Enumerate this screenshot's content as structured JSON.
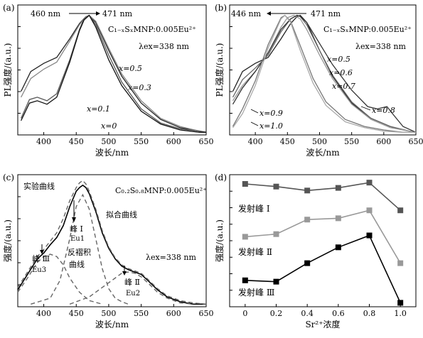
{
  "chart_data": [
    {
      "panel": "(a)",
      "type": "line",
      "xlabel": "波长/nm",
      "ylabel": "PL强度/(a.u.)",
      "xlim": [
        360,
        650
      ],
      "xticks": [
        400,
        450,
        500,
        550,
        600,
        650
      ],
      "title": "C₁₋ₓSₓMNP:0.005Eu²⁺",
      "excitation": "λex=338 nm",
      "shift_annotation": {
        "from": "460 nm",
        "to": "471 nm"
      },
      "series": [
        {
          "name": "x=0.5",
          "shade": "#222222",
          "x": [
            365,
            380,
            400,
            420,
            440,
            455,
            465,
            470,
            480,
            500,
            520,
            550,
            580,
            610,
            640,
            650
          ],
          "y": [
            0.35,
            0.52,
            0.59,
            0.64,
            0.8,
            0.93,
            0.99,
            1.0,
            0.94,
            0.7,
            0.48,
            0.25,
            0.11,
            0.04,
            0.01,
            0.0
          ]
        },
        {
          "name": "x=0.3",
          "shade": "#888888",
          "x": [
            365,
            380,
            400,
            420,
            440,
            455,
            465,
            470,
            480,
            500,
            520,
            550,
            580,
            610,
            640,
            650
          ],
          "y": [
            0.3,
            0.46,
            0.54,
            0.6,
            0.78,
            0.92,
            0.99,
            1.0,
            0.95,
            0.72,
            0.5,
            0.27,
            0.12,
            0.05,
            0.01,
            0.0
          ]
        },
        {
          "name": "x=0.1",
          "shade": "#555555",
          "x": [
            365,
            378,
            390,
            405,
            420,
            440,
            455,
            462,
            470,
            480,
            500,
            520,
            550,
            580,
            610,
            640,
            650
          ],
          "y": [
            0.12,
            0.28,
            0.3,
            0.27,
            0.33,
            0.62,
            0.88,
            0.97,
            1.0,
            0.92,
            0.66,
            0.43,
            0.2,
            0.08,
            0.03,
            0.01,
            0.0
          ]
        },
        {
          "name": "x=0",
          "shade": "#111111",
          "x": [
            365,
            378,
            390,
            405,
            420,
            440,
            455,
            462,
            470,
            480,
            500,
            520,
            550,
            580,
            610,
            640,
            650
          ],
          "y": [
            0.1,
            0.25,
            0.27,
            0.24,
            0.3,
            0.6,
            0.87,
            0.96,
            1.0,
            0.9,
            0.62,
            0.4,
            0.18,
            0.07,
            0.02,
            0.0,
            0.0
          ]
        }
      ]
    },
    {
      "panel": "(b)",
      "type": "line",
      "xlabel": "波长/nm",
      "ylabel": "PL强度/(a.u.)",
      "xlim": [
        360,
        650
      ],
      "xticks": [
        400,
        450,
        500,
        550,
        600,
        650
      ],
      "title": "C₁₋ₓSₓMNP:0.005Eu²⁺",
      "excitation": "λex=338 nm",
      "shift_annotation": {
        "from": "446 nm",
        "to": "471 nm"
      },
      "series": [
        {
          "name": "x=0.5",
          "shade": "#222222",
          "x": [
            365,
            380,
            400,
            420,
            440,
            455,
            465,
            470,
            480,
            500,
            520,
            550,
            580,
            610,
            640,
            650
          ],
          "y": [
            0.35,
            0.52,
            0.59,
            0.64,
            0.8,
            0.93,
            0.99,
            1.0,
            0.94,
            0.7,
            0.48,
            0.25,
            0.12,
            0.05,
            0.01,
            0.0
          ]
        },
        {
          "name": "x=0.6",
          "shade": "#666666",
          "x": [
            365,
            380,
            400,
            420,
            440,
            455,
            465,
            470,
            480,
            500,
            520,
            550,
            580,
            610,
            640,
            650
          ],
          "y": [
            0.3,
            0.45,
            0.55,
            0.66,
            0.86,
            0.97,
            1.0,
            0.99,
            0.92,
            0.7,
            0.49,
            0.26,
            0.12,
            0.05,
            0.01,
            0.0
          ]
        },
        {
          "name": "x=0.7",
          "shade": "#999999",
          "x": [
            365,
            380,
            400,
            420,
            440,
            450,
            460,
            470,
            480,
            500,
            520,
            550,
            580,
            610,
            640,
            650
          ],
          "y": [
            0.27,
            0.4,
            0.52,
            0.68,
            0.9,
            0.98,
            1.0,
            0.97,
            0.88,
            0.66,
            0.46,
            0.24,
            0.11,
            0.04,
            0.01,
            0.0
          ]
        },
        {
          "name": "x=0.8",
          "shade": "#333333",
          "x": [
            365,
            380,
            400,
            420,
            440,
            455,
            465,
            470,
            480,
            500,
            520,
            550,
            575,
            590,
            605,
            615,
            630,
            650
          ],
          "y": [
            0.24,
            0.38,
            0.52,
            0.68,
            0.88,
            0.97,
            1.0,
            0.99,
            0.94,
            0.76,
            0.58,
            0.36,
            0.22,
            0.2,
            0.22,
            0.15,
            0.05,
            0.0
          ]
        },
        {
          "name": "x=0.9",
          "shade": "#777777",
          "x": [
            365,
            380,
            400,
            420,
            440,
            446,
            455,
            470,
            490,
            510,
            540,
            570,
            600,
            630,
            650
          ],
          "y": [
            0.05,
            0.2,
            0.44,
            0.75,
            0.98,
            1.0,
            0.95,
            0.74,
            0.46,
            0.26,
            0.11,
            0.05,
            0.02,
            0.0,
            0.0
          ]
        },
        {
          "name": "x=1.0",
          "shade": "#aaaaaa",
          "x": [
            365,
            380,
            400,
            420,
            440,
            446,
            455,
            470,
            490,
            510,
            540,
            570,
            600,
            630,
            650
          ],
          "y": [
            0.04,
            0.16,
            0.4,
            0.72,
            0.97,
            1.0,
            0.94,
            0.7,
            0.42,
            0.23,
            0.09,
            0.04,
            0.01,
            0.0,
            0.0
          ]
        }
      ]
    },
    {
      "panel": "(c)",
      "type": "line",
      "xlabel": "波长/nm",
      "ylabel": "强度/(a.u.)",
      "xlim": [
        360,
        650
      ],
      "xticks": [
        400,
        450,
        500,
        550,
        600,
        650
      ],
      "title": "C₀.₂S₀.₈MNP:0.005Eu²⁺",
      "excitation": "λex=338 nm",
      "labels": {
        "experimental": "实验曲线",
        "fitted": "拟合曲线",
        "deconvolution": "反褶积",
        "curve": "曲线",
        "peak1": "峰 Ⅰ",
        "peak1_sub": "Eu1",
        "peak2": "峰 Ⅱ",
        "peak2_sub": "Eu2",
        "peak3": "峰 Ⅲ",
        "peak3_sub": "Eu3"
      },
      "series": [
        {
          "name": "实验曲线",
          "style": "solid",
          "x": [
            360,
            375,
            390,
            400,
            410,
            420,
            430,
            440,
            450,
            455,
            460,
            465,
            470,
            480,
            490,
            500,
            510,
            520,
            530,
            540,
            550,
            560,
            575,
            590,
            610,
            630,
            650
          ],
          "y": [
            0.12,
            0.25,
            0.38,
            0.43,
            0.5,
            0.56,
            0.66,
            0.82,
            0.95,
            0.98,
            1.0,
            0.98,
            0.93,
            0.78,
            0.6,
            0.47,
            0.38,
            0.32,
            0.29,
            0.27,
            0.25,
            0.2,
            0.12,
            0.06,
            0.02,
            0.0,
            0.0
          ]
        },
        {
          "name": "拟合曲线",
          "style": "dashed",
          "x": [
            360,
            375,
            390,
            400,
            410,
            420,
            430,
            440,
            450,
            455,
            460,
            465,
            470,
            480,
            490,
            500,
            510,
            520,
            530,
            540,
            550,
            560,
            575,
            590,
            610,
            630,
            650
          ],
          "y": [
            0.14,
            0.27,
            0.4,
            0.46,
            0.53,
            0.6,
            0.72,
            0.87,
            0.98,
            1.02,
            1.04,
            1.01,
            0.95,
            0.8,
            0.62,
            0.48,
            0.39,
            0.33,
            0.3,
            0.28,
            0.26,
            0.21,
            0.13,
            0.07,
            0.03,
            0.01,
            0.0
          ]
        },
        {
          "name": "峰 Ⅰ",
          "style": "dashed",
          "x": [
            380,
            410,
            425,
            440,
            450,
            460,
            470,
            480,
            490,
            500,
            510,
            520,
            530
          ],
          "y": [
            0.0,
            0.05,
            0.2,
            0.55,
            0.82,
            0.92,
            0.8,
            0.55,
            0.3,
            0.13,
            0.05,
            0.02,
            0.0
          ]
        },
        {
          "name": "峰 Ⅱ",
          "style": "dashed",
          "x": [
            440,
            470,
            490,
            510,
            520,
            530,
            540,
            550,
            560,
            575,
            590,
            610,
            630
          ],
          "y": [
            0.0,
            0.06,
            0.14,
            0.22,
            0.26,
            0.27,
            0.26,
            0.23,
            0.18,
            0.1,
            0.05,
            0.01,
            0.0
          ]
        },
        {
          "name": "峰 Ⅲ",
          "style": "dashed",
          "x": [
            360,
            375,
            390,
            400,
            410,
            420,
            430,
            440,
            455,
            470,
            490
          ],
          "y": [
            0.1,
            0.22,
            0.35,
            0.4,
            0.42,
            0.4,
            0.33,
            0.22,
            0.1,
            0.03,
            0.0
          ]
        }
      ]
    },
    {
      "panel": "(d)",
      "type": "line",
      "xlabel": "Sr²⁺浓度",
      "ylabel": "强度/(a.u.)",
      "xlim": [
        -0.1,
        1.1
      ],
      "xticks": [
        0,
        0.2,
        0.4,
        0.6,
        0.8,
        1.0
      ],
      "x_tick_labels": [
        "0",
        "0.2",
        "0.4",
        "0.6",
        "0.8",
        "1.0"
      ],
      "series": [
        {
          "name": "发射峰 Ⅰ",
          "color": "#555555",
          "x": [
            0,
            0.2,
            0.4,
            0.6,
            0.8,
            1.0
          ],
          "y": [
            0.93,
            0.91,
            0.88,
            0.9,
            0.94,
            0.73
          ]
        },
        {
          "name": "发射峰 Ⅱ",
          "color": "#999999",
          "x": [
            0,
            0.2,
            0.4,
            0.6,
            0.8,
            1.0
          ],
          "y": [
            0.53,
            0.55,
            0.66,
            0.67,
            0.73,
            0.33
          ]
        },
        {
          "name": "发射峰 Ⅲ",
          "color": "#000000",
          "x": [
            0,
            0.2,
            0.4,
            0.6,
            0.8,
            1.0
          ],
          "y": [
            0.2,
            0.19,
            0.33,
            0.45,
            0.54,
            0.03
          ]
        }
      ]
    }
  ]
}
